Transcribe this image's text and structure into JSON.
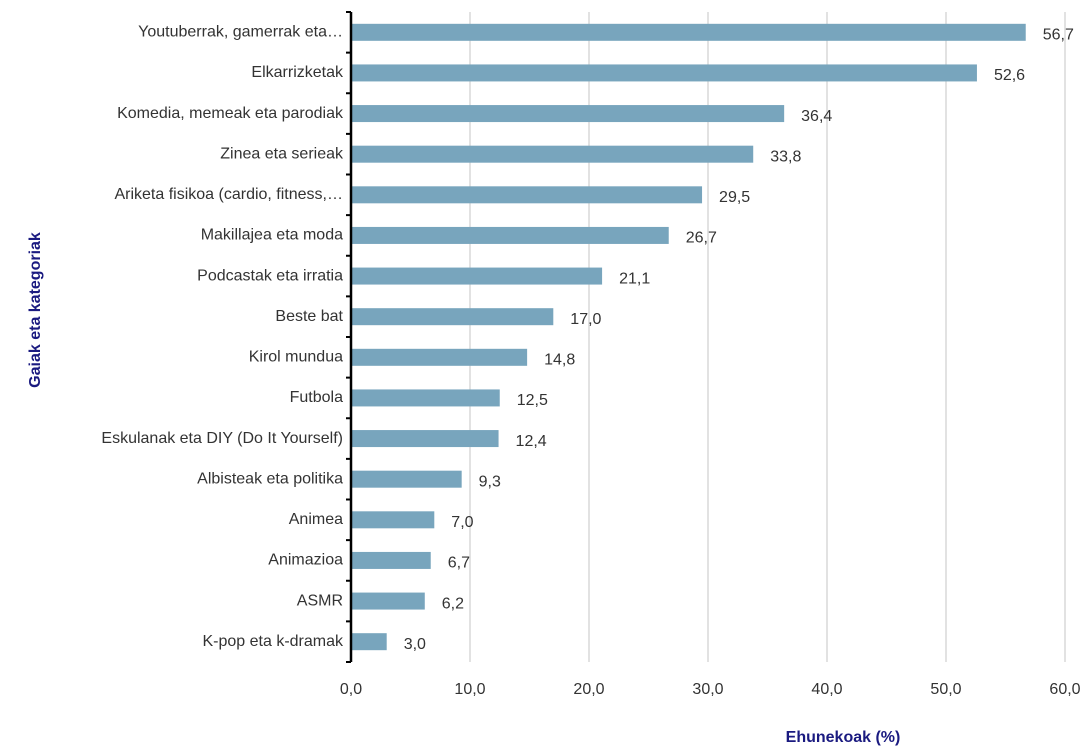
{
  "chart_data": {
    "type": "bar",
    "orientation": "horizontal",
    "x_label": "Ehunekoak (%)",
    "y_label": "Gaiak eta kategoriak",
    "categories": [
      "Youtuberrak, gamerrak eta…",
      "Elkarrizketak",
      "Komedia, memeak eta parodiak",
      "Zinea eta serieak",
      "Ariketa fisikoa (cardio, fitness,…",
      "Makillajea eta moda",
      "Podcastak eta irratia",
      "Beste bat",
      "Kirol mundua",
      "Futbola",
      "Eskulanak eta DIY (Do It Yourself)",
      "Albisteak eta politika",
      "Animea",
      "Animazioa",
      "ASMR",
      "K-pop eta k-dramak"
    ],
    "values": [
      56.7,
      52.6,
      36.4,
      33.8,
      29.5,
      26.7,
      21.1,
      17.0,
      14.8,
      12.5,
      12.4,
      9.3,
      7.0,
      6.7,
      6.2,
      3.0
    ],
    "value_labels": [
      "56,7",
      "52,6",
      "36,4",
      "33,8",
      "29,5",
      "26,7",
      "21,1",
      "17,0",
      "14,8",
      "12,5",
      "12,4",
      "9,3",
      "7,0",
      "6,7",
      "6,2",
      "3,0"
    ],
    "color": "#78a5bd",
    "xlim": [
      0,
      60
    ],
    "xticks": [
      {
        "value": 0,
        "label": "0,0"
      },
      {
        "value": 10,
        "label": "10,0"
      },
      {
        "value": 20,
        "label": "20,0"
      },
      {
        "value": 30,
        "label": "30,0"
      },
      {
        "value": 40,
        "label": "40,0"
      },
      {
        "value": 50,
        "label": "50,0"
      },
      {
        "value": 60,
        "label": "60,0"
      }
    ],
    "grid": true
  }
}
